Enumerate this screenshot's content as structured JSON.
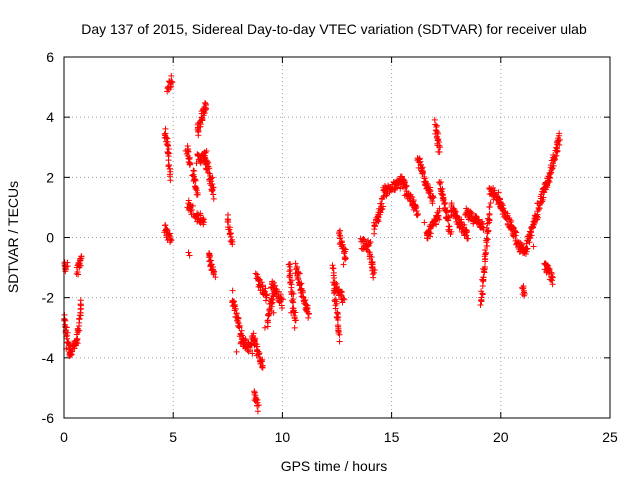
{
  "chart_data": {
    "type": "scatter",
    "title": "Day 137 of 2015, Sidereal Day-to-day VTEC variation (SDTVAR) for receiver ulab",
    "xlabel": "GPS time / hours",
    "ylabel": "SDTVAR / TECUs",
    "xlim": [
      0,
      25
    ],
    "ylim": [
      -6,
      6
    ],
    "x_ticks": [
      0,
      5,
      10,
      15,
      20,
      25
    ],
    "y_ticks": [
      -6,
      -4,
      -2,
      0,
      2,
      4,
      6
    ],
    "x_tick_labels": [
      "0",
      "5",
      "10",
      "15",
      "20",
      "25"
    ],
    "y_tick_labels": [
      "-6",
      "-4",
      "-2",
      "0",
      "2",
      "4",
      "6"
    ],
    "grid": true,
    "marker": "+",
    "series": [
      {
        "name": "SDTVAR",
        "color": "#ff0000",
        "segments": [
          {
            "x": [
              0.0,
              0.25
            ],
            "y": [
              -2.7,
              -3.8
            ]
          },
          {
            "x": [
              0.25,
              0.6
            ],
            "y": [
              -3.8,
              -3.5
            ]
          },
          {
            "x": [
              0.6,
              0.8
            ],
            "y": [
              -3.5,
              -2.1
            ]
          },
          {
            "x": [
              0.0,
              0.15
            ],
            "y": [
              -1.0,
              -0.9
            ]
          },
          {
            "x": [
              0.6,
              0.8
            ],
            "y": [
              -1.2,
              -0.6
            ]
          },
          {
            "x": [
              4.6,
              4.75
            ],
            "y": [
              3.5,
              3.0
            ]
          },
          {
            "x": [
              4.75,
              4.85
            ],
            "y": [
              3.0,
              2.0
            ]
          },
          {
            "x": [
              4.75,
              4.95
            ],
            "y": [
              5.0,
              5.2
            ]
          },
          {
            "x": [
              4.6,
              4.9
            ],
            "y": [
              0.3,
              -0.1
            ]
          },
          {
            "x": [
              5.6,
              5.8
            ],
            "y": [
              3.0,
              2.5
            ]
          },
          {
            "x": [
              5.7,
              5.9
            ],
            "y": [
              1.1,
              0.9
            ]
          },
          {
            "x": [
              5.9,
              6.1
            ],
            "y": [
              2.2,
              1.4
            ]
          },
          {
            "x": [
              6.1,
              6.5
            ],
            "y": [
              3.5,
              4.5
            ]
          },
          {
            "x": [
              6.1,
              6.5
            ],
            "y": [
              2.6,
              2.7
            ]
          },
          {
            "x": [
              6.4,
              6.85
            ],
            "y": [
              2.8,
              1.4
            ]
          },
          {
            "x": [
              6.0,
              6.4
            ],
            "y": [
              0.7,
              0.6
            ]
          },
          {
            "x": [
              6.6,
              6.9
            ],
            "y": [
              -0.6,
              -1.2
            ]
          },
          {
            "x": [
              7.5,
              7.7
            ],
            "y": [
              0.6,
              -0.2
            ]
          },
          {
            "x": [
              7.7,
              8.1
            ],
            "y": [
              -1.9,
              -3.2
            ]
          },
          {
            "x": [
              8.1,
              8.6
            ],
            "y": [
              -3.4,
              -3.7
            ]
          },
          {
            "x": [
              8.6,
              9.1
            ],
            "y": [
              -3.2,
              -4.3
            ]
          },
          {
            "x": [
              8.7,
              8.9
            ],
            "y": [
              -5.2,
              -5.6
            ]
          },
          {
            "x": [
              8.8,
              9.3
            ],
            "y": [
              -1.3,
              -2.0
            ]
          },
          {
            "x": [
              9.3,
              9.6
            ],
            "y": [
              -2.8,
              -1.8
            ]
          },
          {
            "x": [
              9.5,
              10.0
            ],
            "y": [
              -1.5,
              -2.2
            ]
          },
          {
            "x": [
              10.3,
              10.6
            ],
            "y": [
              -0.8,
              -2.9
            ]
          },
          {
            "x": [
              10.6,
              11.2
            ],
            "y": [
              -1.0,
              -2.6
            ]
          },
          {
            "x": [
              12.3,
              12.6
            ],
            "y": [
              -1.0,
              -3.4
            ]
          },
          {
            "x": [
              12.4,
              12.8
            ],
            "y": [
              -1.6,
              -2.0
            ]
          },
          {
            "x": [
              12.6,
              12.9
            ],
            "y": [
              0.1,
              -0.6
            ]
          },
          {
            "x": [
              13.6,
              14.0
            ],
            "y": [
              -0.2,
              -0.3
            ]
          },
          {
            "x": [
              14.0,
              14.2
            ],
            "y": [
              -0.5,
              -1.2
            ]
          },
          {
            "x": [
              14.2,
              14.6
            ],
            "y": [
              0.3,
              1.2
            ]
          },
          {
            "x": [
              14.6,
              15.4
            ],
            "y": [
              1.5,
              1.8
            ]
          },
          {
            "x": [
              15.4,
              16.2
            ],
            "y": [
              2.0,
              0.8
            ]
          },
          {
            "x": [
              16.2,
              16.9
            ],
            "y": [
              2.6,
              1.2
            ]
          },
          {
            "x": [
              16.6,
              17.2
            ],
            "y": [
              0.0,
              0.8
            ]
          },
          {
            "x": [
              17.0,
              17.2
            ],
            "y": [
              3.8,
              2.8
            ]
          },
          {
            "x": [
              17.2,
              17.7
            ],
            "y": [
              1.8,
              0.2
            ]
          },
          {
            "x": [
              17.7,
              18.5
            ],
            "y": [
              1.0,
              0.0
            ]
          },
          {
            "x": [
              18.4,
              19.2
            ],
            "y": [
              0.8,
              0.4
            ]
          },
          {
            "x": [
              19.1,
              19.5
            ],
            "y": [
              -2.1,
              1.0
            ]
          },
          {
            "x": [
              19.5,
              20.1
            ],
            "y": [
              1.6,
              1.0
            ]
          },
          {
            "x": [
              20.1,
              20.7
            ],
            "y": [
              0.9,
              0.0
            ]
          },
          {
            "x": [
              20.7,
              21.1
            ],
            "y": [
              -0.2,
              -0.5
            ]
          },
          {
            "x": [
              21.0,
              21.1
            ],
            "y": [
              -1.7,
              -1.8
            ]
          },
          {
            "x": [
              21.1,
              21.7
            ],
            "y": [
              -0.4,
              0.8
            ]
          },
          {
            "x": [
              21.7,
              22.2
            ],
            "y": [
              1.0,
              2.0
            ]
          },
          {
            "x": [
              22.0,
              22.4
            ],
            "y": [
              -0.9,
              -1.4
            ]
          },
          {
            "x": [
              22.2,
              22.7
            ],
            "y": [
              2.0,
              3.3
            ]
          }
        ],
        "points": [
          {
            "x": 0.1,
            "y": -3.7
          },
          {
            "x": 0.3,
            "y": -3.8
          },
          {
            "x": 0.45,
            "y": -3.6
          },
          {
            "x": 0.05,
            "y": -2.9
          },
          {
            "x": 0.7,
            "y": -3.1
          },
          {
            "x": 0.75,
            "y": -2.5
          },
          {
            "x": 0.7,
            "y": -1.0
          },
          {
            "x": 0.75,
            "y": -0.7
          },
          {
            "x": 4.8,
            "y": 2.4
          },
          {
            "x": 4.85,
            "y": 2.1
          },
          {
            "x": 5.65,
            "y": 1.0
          },
          {
            "x": 5.7,
            "y": -0.5
          },
          {
            "x": 5.75,
            "y": -0.6
          },
          {
            "x": 6.3,
            "y": 4.2
          },
          {
            "x": 6.5,
            "y": 4.4
          },
          {
            "x": 6.6,
            "y": 2.5
          },
          {
            "x": 6.8,
            "y": 2.0
          },
          {
            "x": 6.75,
            "y": 1.6
          },
          {
            "x": 7.9,
            "y": -3.8
          },
          {
            "x": 8.1,
            "y": -3.5
          },
          {
            "x": 9.0,
            "y": -4.2
          },
          {
            "x": 9.2,
            "y": -3.0
          },
          {
            "x": 9.6,
            "y": -2.5
          },
          {
            "x": 10.4,
            "y": -2.5
          },
          {
            "x": 10.8,
            "y": -1.2
          },
          {
            "x": 11.1,
            "y": -2.4
          },
          {
            "x": 12.8,
            "y": -0.9
          },
          {
            "x": 12.9,
            "y": -0.4
          },
          {
            "x": 14.1,
            "y": -1.0
          },
          {
            "x": 14.3,
            "y": 0.5
          },
          {
            "x": 15.6,
            "y": 1.4
          },
          {
            "x": 16.5,
            "y": 0.5
          },
          {
            "x": 17.1,
            "y": 3.5
          },
          {
            "x": 18.0,
            "y": 0.7
          },
          {
            "x": 19.0,
            "y": 0.6
          },
          {
            "x": 19.1,
            "y": -2.1
          },
          {
            "x": 19.9,
            "y": 1.5
          },
          {
            "x": 20.5,
            "y": 0.3
          },
          {
            "x": 21.0,
            "y": -1.7
          },
          {
            "x": 21.5,
            "y": -0.3
          },
          {
            "x": 22.1,
            "y": -0.9
          },
          {
            "x": 22.3,
            "y": -1.4
          },
          {
            "x": 22.6,
            "y": 3.2
          }
        ]
      }
    ]
  }
}
